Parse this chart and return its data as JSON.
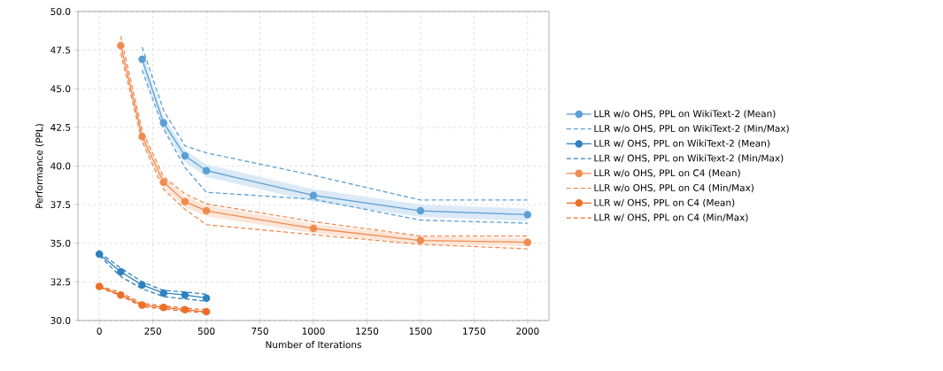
{
  "chart_data": {
    "type": "line",
    "xlabel": "Number of Iterations",
    "ylabel": "Performance (PPL)",
    "xlim": [
      -100,
      2100
    ],
    "ylim": [
      30,
      50
    ],
    "xticks": [
      0,
      250,
      500,
      750,
      1000,
      1250,
      1500,
      1750,
      2000
    ],
    "yticks": [
      {
        "value": 30,
        "label": "30.0"
      },
      {
        "value": 32.5,
        "label": "32.5"
      },
      {
        "value": 35,
        "label": "35.0"
      },
      {
        "value": 37.5,
        "label": "37.5"
      },
      {
        "value": 40,
        "label": "40.0"
      },
      {
        "value": 42.5,
        "label": "42.5"
      },
      {
        "value": 45,
        "label": "45.0"
      },
      {
        "value": 47.5,
        "label": "47.5"
      },
      {
        "value": 50,
        "label": "50.0"
      }
    ],
    "grid": true,
    "legend": "right",
    "series": [
      {
        "name": "LLR w/o OHS, PPL on WikiText-2 (Mean)",
        "color": "#5b9fd4",
        "marker": "circle",
        "line_style": "solid",
        "x": [
          200,
          300,
          400,
          500,
          1000,
          1500,
          2000
        ],
        "values": [
          46.9,
          42.8,
          40.66,
          39.7,
          38.1,
          37.1,
          36.85
        ],
        "lower": [
          46.4,
          42.4,
          40.25,
          39.3,
          37.7,
          36.7,
          36.45
        ],
        "upper": [
          47.4,
          43.2,
          41.05,
          40.1,
          38.5,
          37.5,
          37.25
        ]
      },
      {
        "name": "LLR w/o OHS, PPL on WikiText-2 (Min/Max)",
        "color": "#5b9fd4",
        "marker": "none",
        "line_style": "dashed",
        "x": [
          200,
          300,
          400,
          500,
          1000,
          1500,
          2000
        ],
        "values": [
          47.7,
          43.6,
          41.3,
          40.85,
          39.4,
          37.8,
          37.8
        ]
      },
      {
        "color": "#5b9fd4",
        "marker": "none",
        "line_style": "dashed",
        "x": [
          200,
          300,
          400,
          500,
          1000,
          1500,
          2000
        ],
        "values": [
          46.2,
          42.4,
          39.9,
          38.3,
          37.85,
          36.5,
          36.3
        ]
      },
      {
        "name": "LLR w/ OHS, PPL on WikiText-2 (Mean)",
        "color": "#2f82c0",
        "marker": "circle",
        "line_style": "solid",
        "x": [
          0,
          100,
          200,
          300,
          400,
          500
        ],
        "values": [
          34.3,
          33.15,
          32.3,
          31.78,
          31.65,
          31.45
        ]
      },
      {
        "name": "LLR w/ OHS, PPL on WikiText-2 (Min/Max)",
        "color": "#2f82c0",
        "marker": "none",
        "line_style": "dashed",
        "x": [
          0,
          100,
          200,
          300,
          400,
          500
        ],
        "values": [
          34.4,
          33.4,
          32.5,
          31.95,
          31.85,
          31.7
        ]
      },
      {
        "color": "#2f82c0",
        "marker": "none",
        "line_style": "dashed",
        "x": [
          0,
          100,
          200,
          300,
          400,
          500
        ],
        "values": [
          34.2,
          32.85,
          32.05,
          31.55,
          31.4,
          31.25
        ]
      },
      {
        "name": "LLR w/o OHS, PPL on C4 (Mean)",
        "color": "#f08c50",
        "marker": "circle",
        "line_style": "solid",
        "x": [
          100,
          200,
          300,
          400,
          500,
          1000,
          1500,
          2000
        ],
        "values": [
          47.8,
          41.9,
          38.95,
          37.7,
          37.1,
          35.96,
          35.18,
          35.06
        ],
        "lower": [
          47.4,
          41.5,
          38.6,
          37.35,
          36.75,
          35.66,
          34.93,
          34.81
        ],
        "upper": [
          48.2,
          42.3,
          39.3,
          38.05,
          37.45,
          36.26,
          35.43,
          35.31
        ]
      },
      {
        "name": "LLR w/o OHS, PPL on C4 (Min/Max)",
        "color": "#f08c50",
        "marker": "none",
        "line_style": "dashed",
        "x": [
          100,
          200,
          300,
          400,
          500,
          1000,
          1500,
          2000
        ],
        "values": [
          48.4,
          42.3,
          39.3,
          38.2,
          37.55,
          36.4,
          35.47,
          35.47
        ]
      },
      {
        "color": "#f08c50",
        "marker": "none",
        "line_style": "dashed",
        "x": [
          100,
          200,
          300,
          400,
          500,
          1000,
          1500,
          2000
        ],
        "values": [
          47.3,
          41.6,
          38.5,
          37.2,
          36.2,
          35.55,
          34.93,
          34.64
        ]
      },
      {
        "name": "LLR w/ OHS, PPL on C4 (Mean)",
        "color": "#ec6f28",
        "marker": "circle",
        "line_style": "solid",
        "x": [
          0,
          100,
          200,
          300,
          400,
          500
        ],
        "values": [
          32.2,
          31.65,
          31.0,
          30.85,
          30.7,
          30.57
        ]
      },
      {
        "name": "LLR w/ OHS, PPL on C4 (Min/Max)",
        "color": "#ec6f28",
        "marker": "none",
        "line_style": "dashed",
        "x": [
          0,
          100,
          200,
          300,
          400,
          500
        ],
        "values": [
          32.25,
          31.8,
          31.1,
          30.95,
          30.8,
          30.7
        ]
      },
      {
        "color": "#ec6f28",
        "marker": "none",
        "line_style": "dashed",
        "x": [
          0,
          100,
          200,
          300,
          400,
          500
        ],
        "values": [
          32.15,
          31.6,
          30.9,
          30.75,
          30.6,
          30.5
        ]
      }
    ]
  }
}
